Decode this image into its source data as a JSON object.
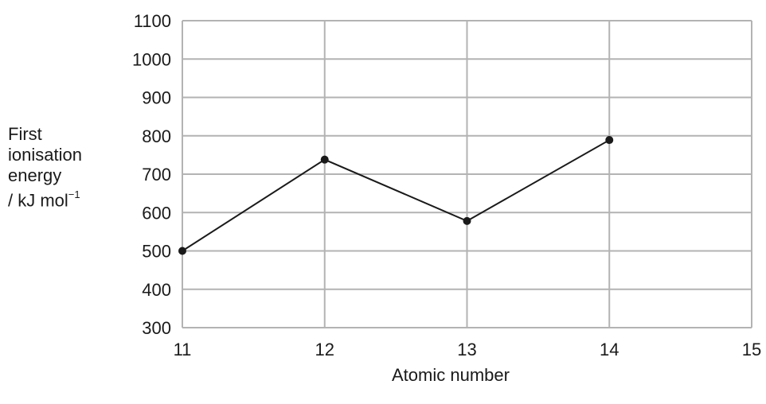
{
  "chart_data": {
    "type": "line",
    "x": [
      11,
      12,
      13,
      14
    ],
    "y": [
      500,
      738,
      578,
      789
    ],
    "xticks": [
      "11",
      "12",
      "13",
      "14",
      "15"
    ],
    "yticks": [
      "300",
      "400",
      "500",
      "600",
      "700",
      "800",
      "900",
      "1000",
      "1100"
    ],
    "xlim": [
      11,
      15
    ],
    "ylim": [
      300,
      1100
    ],
    "grid": true,
    "xlabel": "Atomic number",
    "ylabel": {
      "line1": "First",
      "line2": "ionisation",
      "line3": "energy",
      "line4": "/ kJ mol",
      "unit_exponent": "−1"
    },
    "line_color": "#1a1a1a",
    "grid_color": "#b3b3b3"
  }
}
